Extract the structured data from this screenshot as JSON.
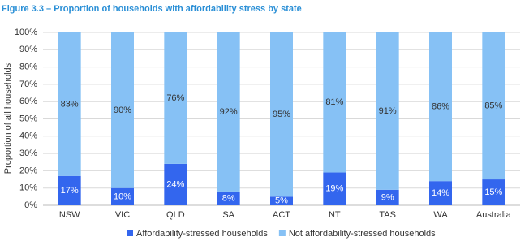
{
  "chart_data": {
    "type": "stacked_bar",
    "title": "Figure 3.3 – Proportion of households with affordability stress by state",
    "y_label": "Proportion of all households",
    "categories": [
      "NSW",
      "VIC",
      "QLD",
      "SA",
      "ACT",
      "NT",
      "TAS",
      "WA",
      "Australia"
    ],
    "series": [
      {
        "name": "Affordability-stressed households",
        "color": "#3366ee",
        "values": [
          17,
          10,
          24,
          8,
          5,
          19,
          9,
          14,
          15
        ],
        "value_labels": [
          "17%",
          "10%",
          "24%",
          "8%",
          "5%",
          "19%",
          "9%",
          "14%",
          "15%"
        ]
      },
      {
        "name": "Not affordability-stressed households",
        "color": "#86c1f5",
        "values": [
          83,
          90,
          76,
          92,
          95,
          81,
          91,
          86,
          85
        ],
        "value_labels": [
          "83%",
          "90%",
          "76%",
          "92%",
          "95%",
          "81%",
          "91%",
          "86%",
          "85%"
        ]
      }
    ],
    "ylim": [
      0,
      100
    ],
    "yticks": [
      {
        "value": 0,
        "label": "0%"
      },
      {
        "value": 10,
        "label": "10%"
      },
      {
        "value": 20,
        "label": "20%"
      },
      {
        "value": 30,
        "label": "30%"
      },
      {
        "value": 40,
        "label": "40%"
      },
      {
        "value": 50,
        "label": "50%"
      },
      {
        "value": 60,
        "label": "60%"
      },
      {
        "value": 70,
        "label": "70%"
      },
      {
        "value": 80,
        "label": "80%"
      },
      {
        "value": 90,
        "label": "90%"
      },
      {
        "value": 100,
        "label": "100%"
      }
    ],
    "grid": true,
    "legend": "bottom"
  }
}
